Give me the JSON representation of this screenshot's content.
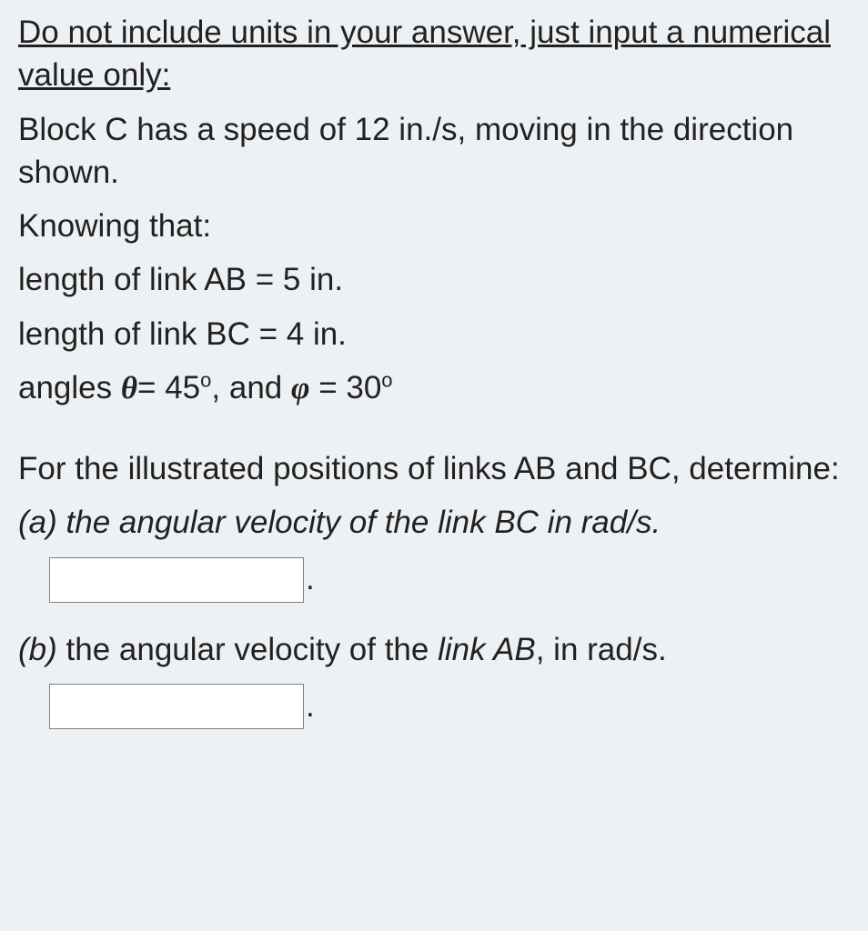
{
  "instruction": "Do not include units in your answer, just input a numerical value only:",
  "problem_statement": "Block C has a speed of 12 in./s, moving in the direction shown.",
  "knowing_label": "Knowing that:",
  "given": {
    "ab_line": "length of link AB = 5 in.",
    "bc_line": "length of link BC = 4 in.",
    "angles_prefix": "angles ",
    "theta_text": "= 45",
    "angles_mid": ", and ",
    "phi_text": " = 30"
  },
  "determine_line": " For the illustrated positions of links AB and BC, determine:",
  "part_a": {
    "label": "(a)",
    "text": " the angular velocity of the link BC in rad/s.",
    "input_value": ""
  },
  "part_b": {
    "label": "(b)",
    "text_before_italic": " the angular velocity of the ",
    "italic_part": "link AB",
    "text_after_italic": ", in rad/s.",
    "input_value": ""
  },
  "colors": {
    "background": "#eef1f4",
    "text": "#212121",
    "input_border": "#808080",
    "input_bg": "#ffffff"
  },
  "font_sizes": {
    "body": 35,
    "sup": 22,
    "input": 30
  }
}
